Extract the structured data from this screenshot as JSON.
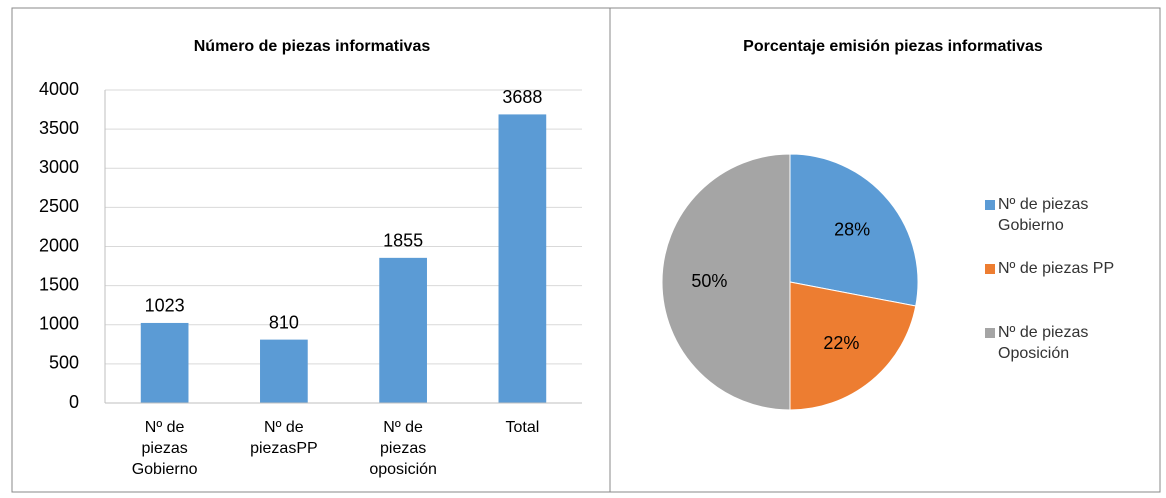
{
  "chart_data": [
    {
      "type": "bar",
      "title": "Número de piezas informativas",
      "categories": [
        "Nº de piezas Gobierno",
        "Nº de piezasPP",
        "Nº de piezas oposición",
        "Total"
      ],
      "values": [
        1023,
        810,
        1855,
        3688
      ],
      "color": "#5b9bd5",
      "ylim": [
        0,
        4000
      ],
      "yticks": [
        0,
        500,
        1000,
        1500,
        2000,
        2500,
        3000,
        3500,
        4000
      ],
      "grid": true
    },
    {
      "type": "pie",
      "title": "Porcentaje emisión piezas informativas",
      "categories": [
        "Nº de piezas Gobierno",
        "Nº de piezas PP",
        "Nº de piezas Oposición"
      ],
      "values": [
        28,
        22,
        50
      ],
      "value_labels": [
        "28%",
        "22%",
        "50%"
      ],
      "colors": [
        "#5b9bd5",
        "#ed7d31",
        "#a5a5a5"
      ],
      "legend": "right"
    }
  ]
}
